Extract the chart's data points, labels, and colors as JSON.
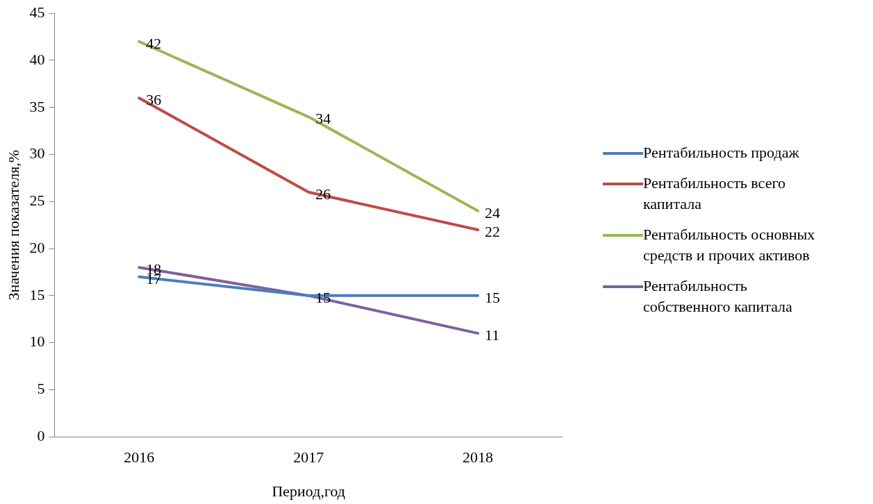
{
  "chart_data": {
    "type": "line",
    "xlabel": "Период,год",
    "ylabel": "Значения показателя,%",
    "categories": [
      "2016",
      "2017",
      "2018"
    ],
    "series": [
      {
        "name": "Рентабильность продаж",
        "color": "#4a7ebb",
        "values": [
          17,
          15,
          15
        ],
        "value_labels": [
          "17",
          "15",
          "15"
        ]
      },
      {
        "name": "Рентабильность всего капитала",
        "color": "#be4b48",
        "values": [
          36,
          26,
          22
        ],
        "value_labels": [
          "36",
          "26",
          "22"
        ]
      },
      {
        "name": "Рентабильность основных средств и прочих активов",
        "color": "#98b954",
        "values": [
          42,
          34,
          24
        ],
        "value_labels": [
          "42",
          "34",
          "24"
        ]
      },
      {
        "name": "Рентабильность собственного капитала",
        "color": "#7d60a0",
        "values": [
          18,
          15,
          11
        ],
        "value_labels": [
          "18",
          null,
          "11"
        ]
      }
    ],
    "ylim": [
      0,
      45
    ],
    "yticks": [
      0,
      5,
      10,
      15,
      20,
      25,
      30,
      35,
      40,
      45
    ],
    "grid": false,
    "legend": "right",
    "marker": "none",
    "line_style": "solid"
  }
}
